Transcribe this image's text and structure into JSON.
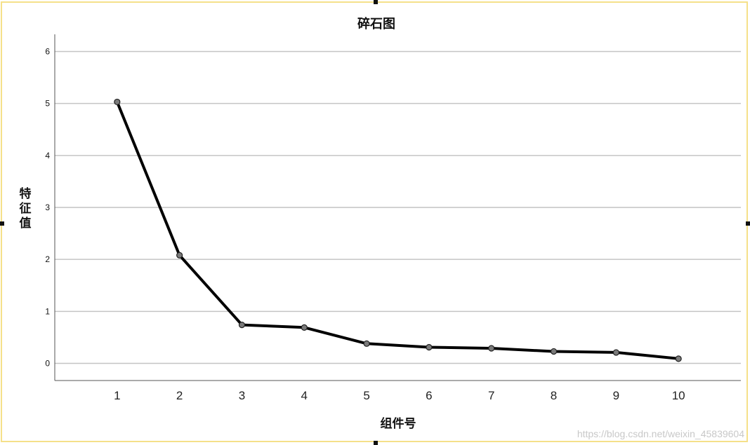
{
  "chart_data": {
    "type": "line",
    "title": "碎石图",
    "xlabel": "组件号",
    "ylabel": "特征值",
    "x": [
      1,
      2,
      3,
      4,
      5,
      6,
      7,
      8,
      9,
      10
    ],
    "values": [
      5.03,
      2.08,
      0.74,
      0.69,
      0.38,
      0.31,
      0.29,
      0.23,
      0.21,
      0.09
    ],
    "xlim": [
      0,
      11
    ],
    "ylim": [
      -0.33,
      6.33
    ],
    "yticks": [
      0,
      1,
      2,
      3,
      4,
      5,
      6
    ],
    "grid": true,
    "line_color": "#000000",
    "marker_color": "#7a7a7a"
  },
  "watermark": "https://blog.csdn.net/weixin_45839604"
}
